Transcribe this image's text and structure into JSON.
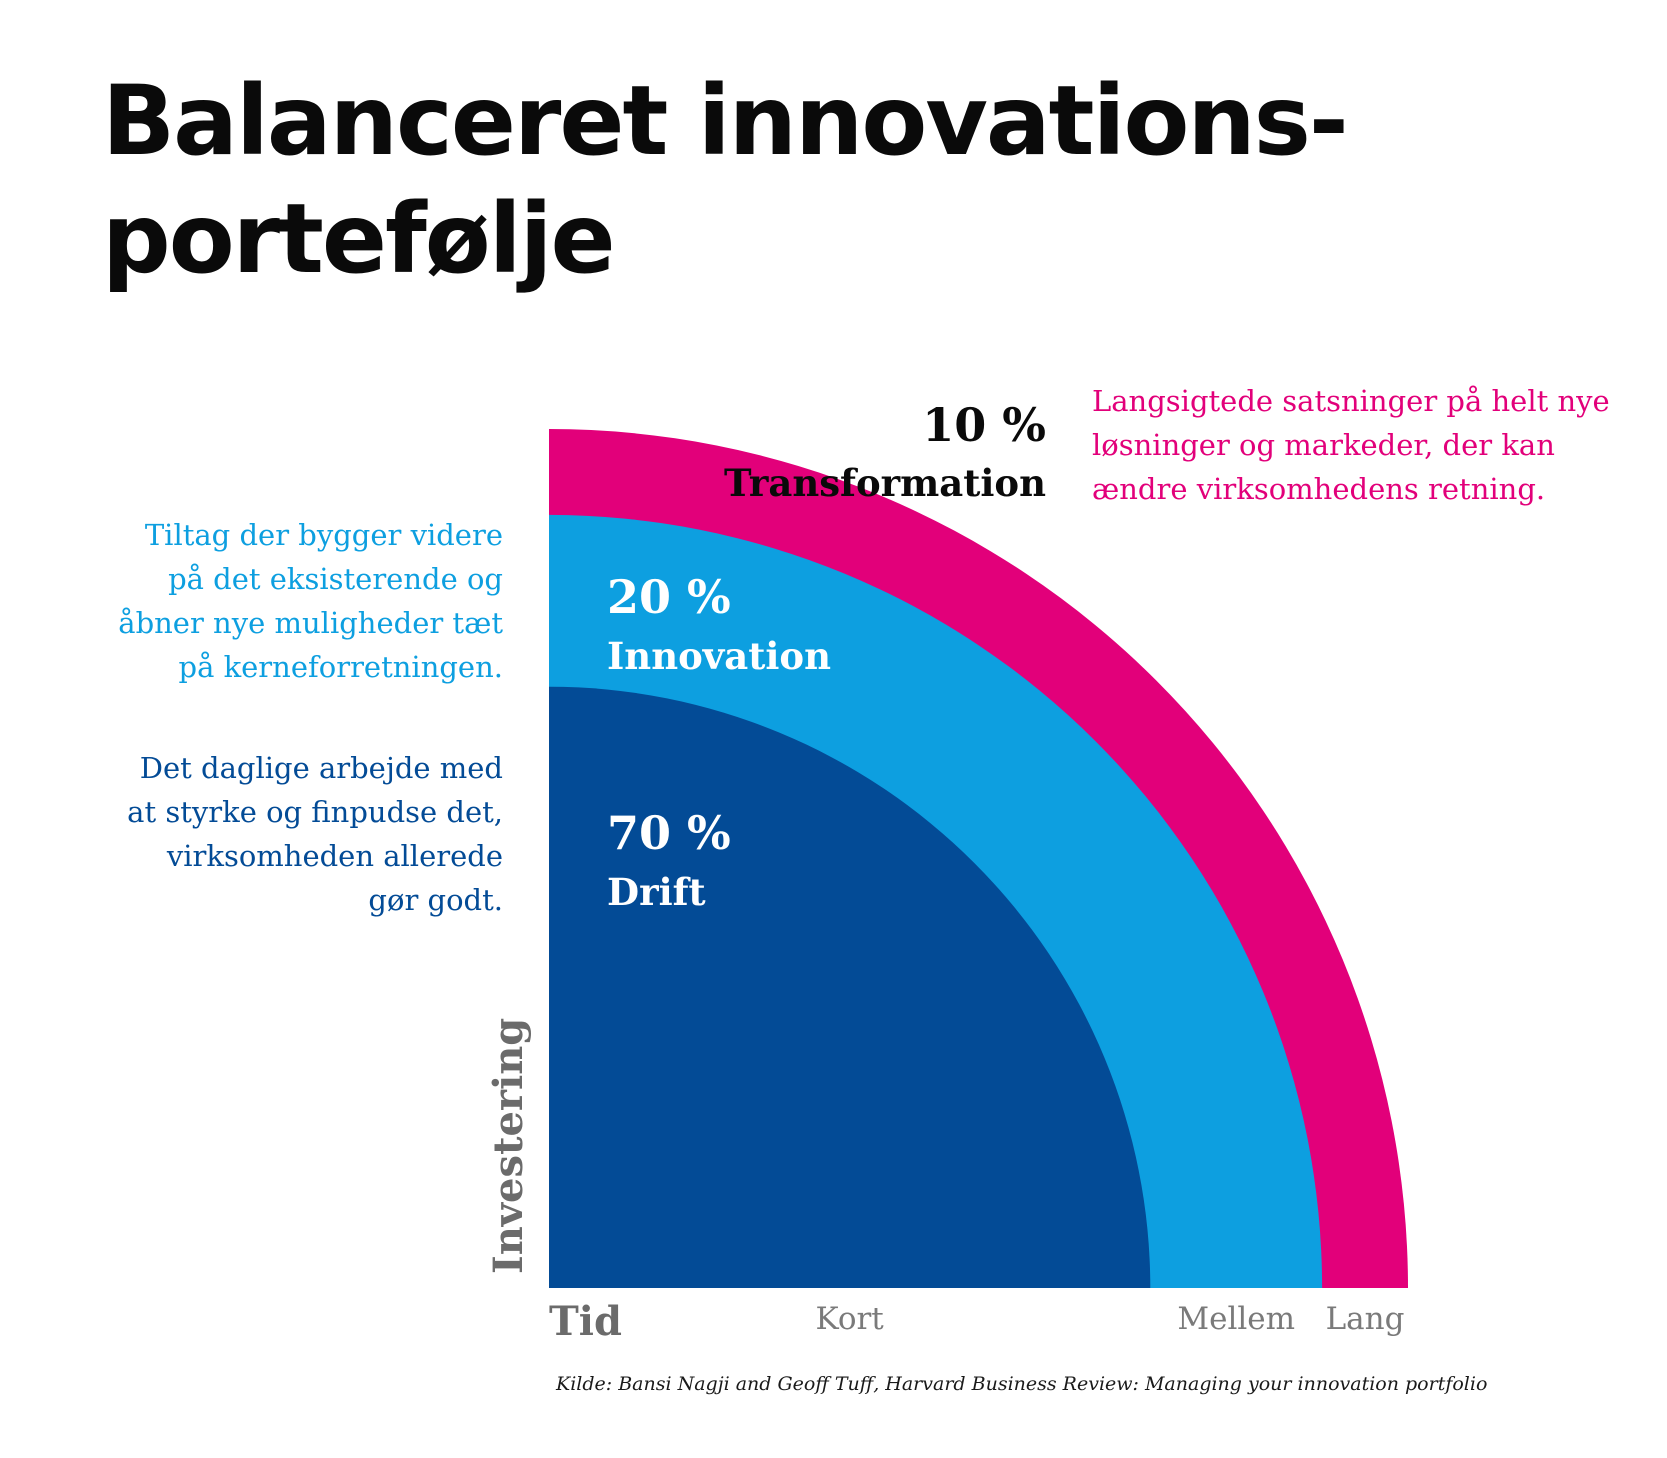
{
  "title": {
    "line1": "Balanceret innovations-",
    "line2": "portefølje"
  },
  "chart_data": {
    "type": "area",
    "title": "Balanceret innovations-portefølje",
    "xlabel": "Tid",
    "ylabel": "Investering",
    "x_categories": [
      "Kort",
      "Mellem",
      "Lang"
    ],
    "series": [
      {
        "name": "Drift",
        "value": 70,
        "value_label": "70 %",
        "horizon": "Kort",
        "color": "#034b96",
        "description": [
          "Det daglige arbejde med",
          "at styrke og finpudse det,",
          "virksomheden allerede",
          "gør godt."
        ]
      },
      {
        "name": "Innovation",
        "value": 20,
        "value_label": "20 %",
        "horizon": "Mellem",
        "color": "#0d9fe0",
        "description": [
          "Tiltag der bygger videre",
          "på det eksisterende og",
          "åbner nye muligheder tæt",
          "på kerneforretningen."
        ]
      },
      {
        "name": "Transformation",
        "value": 10,
        "value_label": "10 %",
        "horizon": "Lang",
        "color": "#e2007a",
        "description": [
          "Langsigtede satsninger på helt nye",
          "løsninger og markeder, der kan",
          "ændre virksomhedens retning."
        ]
      }
    ]
  },
  "source": "Kilde: Bansi Nagji and Geoff Tuff, Harvard Business Review: Managing your innovation portfolio",
  "colors": {
    "axis_label": "#6b6b6b",
    "tick_label": "#7a7a7a",
    "text_dark": "#0a0a0a",
    "text_light": "#ffffff"
  }
}
